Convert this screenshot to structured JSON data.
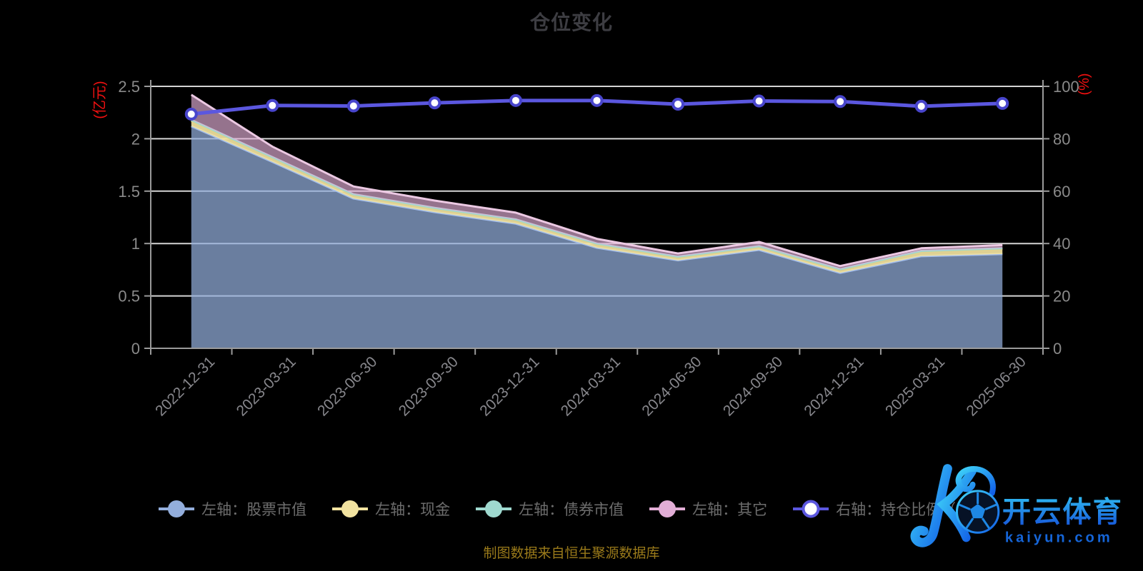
{
  "title": "仓位变化",
  "source_note": "制图数据来自恒生聚源数据库",
  "watermark": {
    "brand": "开云体育",
    "domain": "kaiyun.com"
  },
  "chart_data": {
    "type": "area",
    "subtype": "stacked-area-plus-line",
    "background": "#000000",
    "grid": true,
    "legend_position": "bottom",
    "categories": [
      "2022-12-31",
      "2023-03-31",
      "2023-06-30",
      "2023-09-30",
      "2023-12-31",
      "2024-03-31",
      "2024-06-30",
      "2024-09-30",
      "2024-12-31",
      "2025-03-31",
      "2025-06-30"
    ],
    "left_axis": {
      "name": "(亿元)",
      "name_color": "#F01010",
      "ticks": [
        0,
        0.5,
        1,
        1.5,
        2,
        2.5
      ],
      "range": [
        0,
        2.5
      ]
    },
    "right_axis": {
      "name": "(%)",
      "name_color": "#F01010",
      "ticks": [
        0,
        20,
        40,
        60,
        80,
        100
      ],
      "range": [
        0,
        100
      ]
    },
    "axis_colors": {
      "gridline": "#D4D4D4",
      "axis_line": "#9A9A9A",
      "tick_label": "#8A8A8A",
      "x_label": "#87878C"
    },
    "series": [
      {
        "id": "stock",
        "name": "左轴：股票市值",
        "type": "area",
        "axis": "left",
        "color": "#93AEDC",
        "edge_color": "#A4BEEC",
        "fill_opacity": 0.72,
        "values": [
          2.12,
          1.78,
          1.43,
          1.3,
          1.19,
          0.96,
          0.84,
          0.94,
          0.72,
          0.88,
          0.9
        ]
      },
      {
        "id": "cash",
        "name": "左轴：现金",
        "type": "area",
        "axis": "left",
        "color": "#F2E3A0",
        "edge_color": "#E3D187",
        "fill_opacity": 0.92,
        "values": [
          0.05,
          0.04,
          0.035,
          0.035,
          0.035,
          0.035,
          0.03,
          0.03,
          0.03,
          0.045,
          0.05
        ]
      },
      {
        "id": "bond",
        "name": "左轴：债券市值",
        "type": "area",
        "axis": "left",
        "color": "#9FD9CF",
        "edge_color": "#9FD9CF",
        "fill_opacity": 0.85,
        "values": [
          0.01,
          0.005,
          0.005,
          0.005,
          0.005,
          0.005,
          0.005,
          0.005,
          0.005,
          0.005,
          0.005
        ]
      },
      {
        "id": "other",
        "name": "左轴：其它",
        "type": "area",
        "axis": "left",
        "color": "#E2AED6",
        "edge_color": "#ECC9E3",
        "fill_opacity": 0.66,
        "values": [
          0.24,
          0.1,
          0.075,
          0.07,
          0.065,
          0.045,
          0.03,
          0.04,
          0.03,
          0.025,
          0.03
        ]
      },
      {
        "id": "ratio",
        "name": "右轴：持仓比例（%）",
        "type": "line",
        "axis": "right",
        "color": "#5B57DF",
        "marker_fill": "#FFFFFF",
        "marker_ring": "#4845CC",
        "values": [
          89.4,
          92.7,
          92.5,
          93.7,
          94.6,
          94.6,
          93.2,
          94.4,
          94.2,
          92.4,
          93.5
        ]
      }
    ]
  }
}
